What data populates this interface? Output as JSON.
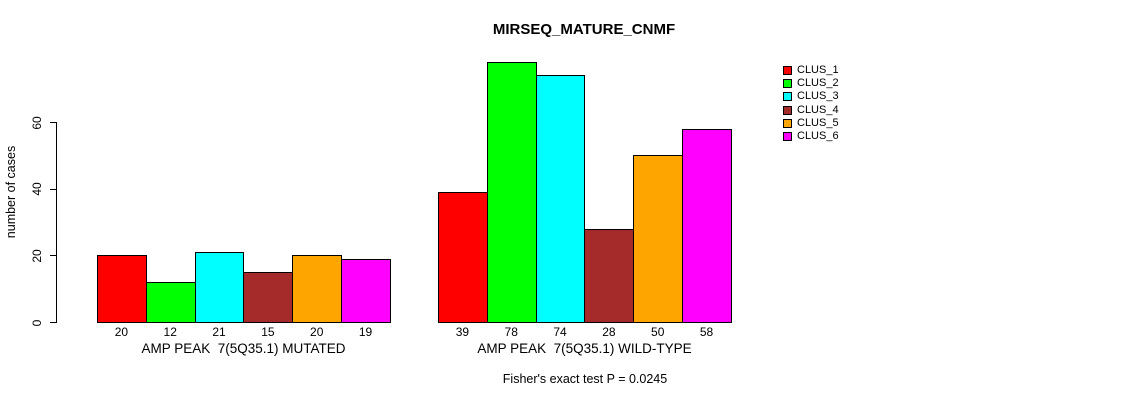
{
  "title": "MIRSEQ_MATURE_CNMF",
  "caption": "Fisher's exact test P = 0.0245",
  "chart_data": {
    "type": "bar",
    "title": "MIRSEQ_MATURE_CNMF",
    "xlabel": "",
    "ylabel": "number of cases",
    "ylim": [
      0,
      80
    ],
    "yticks": [
      0,
      20,
      40,
      60
    ],
    "grid": false,
    "legend_position": "right-outside",
    "bar_value_labels_shown": true,
    "background_color": "#ffffff",
    "bar_border_color": "#000000",
    "categories": [
      "AMP PEAK  7(5Q35.1) MUTATED",
      "AMP PEAK  7(5Q35.1) WILD-TYPE"
    ],
    "series": [
      {
        "name": "CLUS_1",
        "color": "#FF0000",
        "values": [
          20,
          39
        ]
      },
      {
        "name": "CLUS_2",
        "color": "#00FF00",
        "values": [
          12,
          78
        ]
      },
      {
        "name": "CLUS_3",
        "color": "#00FFFF",
        "values": [
          21,
          74
        ]
      },
      {
        "name": "CLUS_4",
        "color": "#A52A2A",
        "values": [
          15,
          28
        ]
      },
      {
        "name": "CLUS_5",
        "color": "#FFA500",
        "values": [
          20,
          50
        ]
      },
      {
        "name": "CLUS_6",
        "color": "#FF00FF",
        "values": [
          19,
          58
        ]
      }
    ],
    "groups": [
      {
        "label": "AMP PEAK  7(5Q35.1) MUTATED",
        "values": [
          20,
          12,
          21,
          15,
          20,
          19
        ]
      },
      {
        "label": "AMP PEAK  7(5Q35.1) WILD-TYPE",
        "values": [
          39,
          78,
          74,
          28,
          50,
          58
        ]
      }
    ],
    "annotation": "Fisher's exact test P = 0.0245"
  }
}
